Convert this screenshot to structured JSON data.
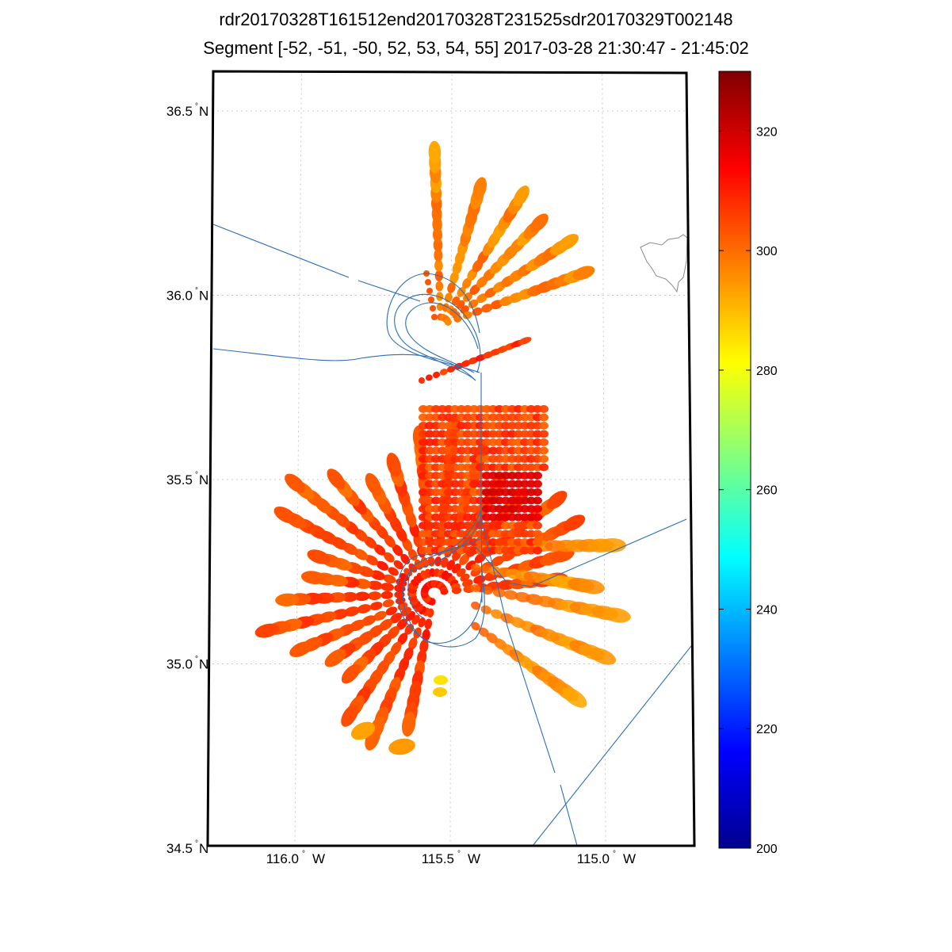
{
  "figure": {
    "title_line1": "rdr20170328T161512end20170328T231525sdr20170329T002148",
    "title_line2": "Segment [-52, -51, -50, 52, 53, 54, 55] 2017-03-28 21:30:47 - 21:45:02"
  },
  "map": {
    "lat_range": [
      34.5,
      36.6
    ],
    "lon_range": [
      -116.25,
      -114.75
    ],
    "lat_ticks": [
      {
        "value": 36.5,
        "label": "36.5",
        "unit": "N"
      },
      {
        "value": 36.0,
        "label": "36.0",
        "unit": "N"
      },
      {
        "value": 35.5,
        "label": "35.5",
        "unit": "N"
      },
      {
        "value": 35.0,
        "label": "35.0",
        "unit": "N"
      },
      {
        "value": 34.5,
        "label": "34.5",
        "unit": "N"
      }
    ],
    "lon_ticks": [
      {
        "value": -116.0,
        "label": "116.0",
        "unit": "W"
      },
      {
        "value": -115.5,
        "label": "115.5",
        "unit": "W"
      },
      {
        "value": -115.0,
        "label": "115.0",
        "unit": "W"
      }
    ],
    "degree_symbol": "°",
    "grid": "dotted"
  },
  "colorbar": {
    "colormap": "jet",
    "min": 200,
    "max": 330,
    "ticks": [
      "320",
      "300",
      "280",
      "260",
      "240",
      "220",
      "200"
    ],
    "tick_values": [
      320,
      300,
      280,
      260,
      240,
      220,
      200
    ]
  },
  "chart_data": {
    "type": "scatter",
    "description_units": "brightness temperature colorscale",
    "track_color": "#2a6fb5",
    "coastline_color": "#888888"
  }
}
